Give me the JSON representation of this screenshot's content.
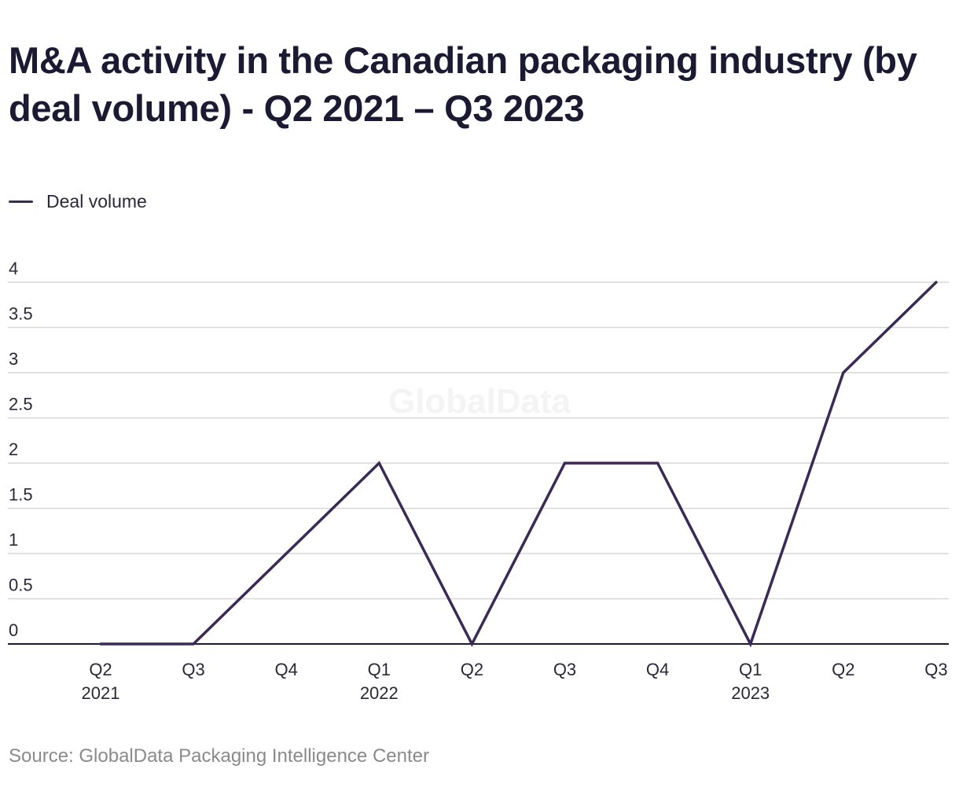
{
  "title": "M&A activity in the Canadian packaging industry (by deal volume) - Q2 2021 – Q3 2023",
  "legend": {
    "label": "Deal volume"
  },
  "watermark": "GlobalData",
  "source": "Source: GlobalData Packaging Intelligence Center",
  "colors": {
    "line": "#3a2a55",
    "grid": "#d7d7d7",
    "axis": "#1c1a33",
    "watermark": "#f4f4f4"
  },
  "chart_data": {
    "type": "line",
    "title": "M&A activity in the Canadian packaging industry (by deal volume) - Q2 2021 – Q3 2023",
    "xlabel": "",
    "ylabel": "",
    "ylim": [
      0,
      4
    ],
    "yticks": [
      "0",
      "0.5",
      "1",
      "1.5",
      "2",
      "2.5",
      "3",
      "3.5",
      "4"
    ],
    "grid": true,
    "legend_position": "top-left",
    "categories": [
      {
        "quarter": "Q2",
        "year": "2021"
      },
      {
        "quarter": "Q3",
        "year": ""
      },
      {
        "quarter": "Q4",
        "year": ""
      },
      {
        "quarter": "Q1",
        "year": "2022"
      },
      {
        "quarter": "Q2",
        "year": ""
      },
      {
        "quarter": "Q3",
        "year": ""
      },
      {
        "quarter": "Q4",
        "year": ""
      },
      {
        "quarter": "Q1",
        "year": "2023"
      },
      {
        "quarter": "Q2",
        "year": ""
      },
      {
        "quarter": "Q3",
        "year": ""
      }
    ],
    "series": [
      {
        "name": "Deal volume",
        "values": [
          0,
          0,
          1,
          2,
          0,
          2,
          2,
          0,
          3,
          4
        ]
      }
    ]
  }
}
